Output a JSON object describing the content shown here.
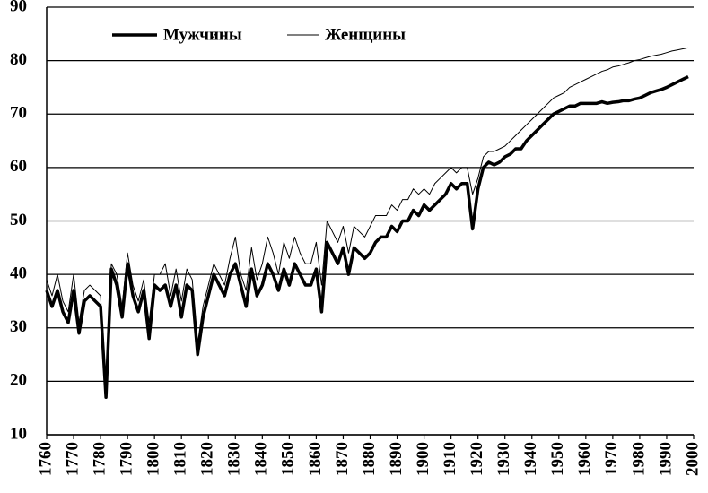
{
  "chart_data": {
    "type": "line",
    "x": [
      1760,
      1762,
      1764,
      1766,
      1768,
      1770,
      1772,
      1774,
      1776,
      1778,
      1780,
      1782,
      1784,
      1786,
      1788,
      1790,
      1792,
      1794,
      1796,
      1798,
      1800,
      1802,
      1804,
      1806,
      1808,
      1810,
      1812,
      1814,
      1816,
      1818,
      1820,
      1822,
      1824,
      1826,
      1828,
      1830,
      1832,
      1834,
      1836,
      1838,
      1840,
      1842,
      1844,
      1846,
      1848,
      1850,
      1852,
      1854,
      1856,
      1858,
      1860,
      1862,
      1864,
      1866,
      1868,
      1870,
      1872,
      1874,
      1876,
      1878,
      1880,
      1882,
      1884,
      1886,
      1888,
      1890,
      1892,
      1894,
      1896,
      1898,
      1900,
      1902,
      1904,
      1906,
      1908,
      1910,
      1912,
      1914,
      1916,
      1918,
      1920,
      1922,
      1924,
      1926,
      1928,
      1930,
      1932,
      1934,
      1936,
      1938,
      1940,
      1942,
      1944,
      1946,
      1948,
      1950,
      1952,
      1954,
      1956,
      1958,
      1960,
      1962,
      1964,
      1966,
      1968,
      1970,
      1972,
      1974,
      1976,
      1978,
      1980,
      1982,
      1984,
      1986,
      1988,
      1990,
      1992,
      1994,
      1996,
      1998
    ],
    "series": [
      {
        "name": "Мужчины",
        "color": "#000000",
        "values": [
          37,
          34,
          37,
          33,
          31,
          37,
          29,
          35,
          36,
          35,
          34,
          17,
          41,
          38,
          32,
          42,
          36,
          33,
          37,
          28,
          38,
          37,
          38,
          34,
          38,
          32,
          38,
          37,
          25,
          32,
          36,
          40,
          38,
          36,
          40,
          42,
          38,
          34,
          41,
          36,
          38,
          42,
          40,
          37,
          41,
          38,
          42,
          40,
          38,
          38,
          41,
          33,
          46,
          44,
          42,
          45,
          40,
          45,
          44,
          43,
          44,
          46,
          47,
          47,
          49,
          48,
          50,
          50,
          52,
          51,
          53,
          52,
          53,
          54,
          55,
          57,
          56,
          57,
          57,
          48.5,
          56,
          60,
          61,
          60.5,
          61,
          62,
          62.5,
          63.5,
          63.5,
          65,
          66,
          67,
          68,
          69,
          70,
          70.5,
          71,
          71.5,
          71.5,
          72,
          72,
          72,
          72,
          72.3,
          72,
          72.2,
          72.3,
          72.5,
          72.5,
          72.8,
          73,
          73.5,
          74,
          74.3,
          74.6,
          75,
          75.5,
          76,
          76.5,
          77
        ]
      },
      {
        "name": "Женщины",
        "color": "#000000",
        "values": [
          39,
          36,
          40,
          35,
          33,
          40,
          31,
          37,
          38,
          37,
          36,
          18,
          42,
          40,
          34,
          44,
          38,
          35,
          39,
          31,
          40,
          40,
          42,
          36,
          41,
          35,
          41,
          39,
          27,
          34,
          38,
          42,
          40,
          38,
          43,
          47,
          40,
          37,
          45,
          39,
          42,
          47,
          44,
          40,
          46,
          43,
          47,
          44,
          42,
          42,
          46,
          38,
          50,
          48,
          46,
          49,
          44,
          49,
          48,
          47,
          49,
          51,
          51,
          51,
          53,
          52,
          54,
          54,
          56,
          55,
          56,
          55,
          57,
          58,
          59,
          60,
          59,
          60,
          60,
          55,
          58,
          62,
          63,
          63,
          63.5,
          64,
          65,
          66,
          67,
          68,
          69,
          70,
          71,
          72,
          73,
          73.5,
          74,
          75,
          75.5,
          76,
          76.5,
          77,
          77.5,
          78,
          78.3,
          78.8,
          79,
          79.3,
          79.6,
          80,
          80.2,
          80.5,
          80.8,
          81,
          81.2,
          81.5,
          81.8,
          82,
          82.2,
          82.4
        ]
      }
    ],
    "xlim": [
      1760,
      2000
    ],
    "xticks": [
      1760,
      1770,
      1780,
      1790,
      1800,
      1810,
      1820,
      1830,
      1840,
      1850,
      1860,
      1870,
      1880,
      1890,
      1900,
      1910,
      1920,
      1930,
      1940,
      1950,
      1960,
      1970,
      1980,
      1990,
      2000
    ],
    "ylim": [
      10,
      90
    ],
    "yticks": [
      10,
      20,
      30,
      40,
      50,
      60,
      70,
      80,
      90
    ],
    "grid": true
  }
}
